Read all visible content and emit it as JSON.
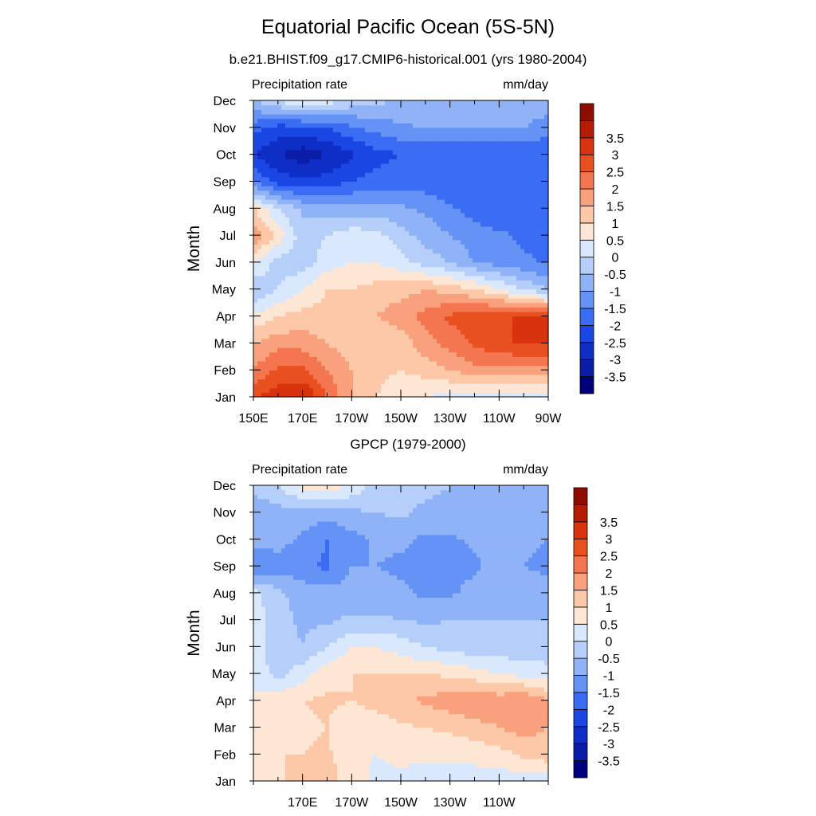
{
  "figure": {
    "title": "Equatorial Pacific Ocean (5S-5N)"
  },
  "colorbar": {
    "colors": [
      "#00007e",
      "#0b1ca6",
      "#0e2ec6",
      "#1a46e4",
      "#3b6cf4",
      "#6493f5",
      "#8fb3f6",
      "#b5cffa",
      "#d9e8fd",
      "#fde6d4",
      "#fcc8a8",
      "#f9a17c",
      "#f47650",
      "#e9501f",
      "#d6330e",
      "#b41d04",
      "#8d0d00"
    ],
    "labels": [
      "3.5",
      "3",
      "2.5",
      "2",
      "1.5",
      "1",
      "0.5",
      "0",
      "-0.5",
      "-1",
      "-1.5",
      "-2",
      "-2.5",
      "-3",
      "-3.5"
    ],
    "levels": [
      -3.5,
      -3,
      -2.5,
      -2,
      -1.5,
      -1,
      -0.5,
      0,
      0.5,
      1,
      1.5,
      2,
      2.5,
      3,
      3.5
    ]
  },
  "chart_data": [
    {
      "type": "heatmap",
      "title": "b.e21.BHIST.f09_g17.CMIP6-historical.001 (yrs 1980-2004)",
      "left_string": "Precipitation rate",
      "right_string": "mm/day",
      "ylabel": "Month",
      "xticklabels": [
        "150E",
        "170E",
        "170W",
        "150W",
        "130W",
        "110W",
        "90W"
      ],
      "yticklabels": [
        "Jan",
        "Feb",
        "Mar",
        "Apr",
        "May",
        "Jun",
        "Jul",
        "Aug",
        "Sep",
        "Oct",
        "Nov",
        "Dec"
      ],
      "x": [
        150,
        160,
        170,
        180,
        190,
        200,
        210,
        220,
        230,
        240,
        250,
        260,
        270
      ],
      "y": [
        "Jan",
        "Feb",
        "Mar",
        "Apr",
        "May",
        "Jun",
        "Jul",
        "Aug",
        "Sep",
        "Oct",
        "Nov",
        "Dec"
      ],
      "units": "mm/day",
      "zlim": [
        -4,
        4
      ],
      "z": [
        [
          3.0,
          3.3,
          3.6,
          2.5,
          1.5,
          1.0,
          0.5,
          0.5,
          0.3,
          0.2,
          0.2,
          0.2,
          0.2
        ],
        [
          2.0,
          2.6,
          2.6,
          2.0,
          1.5,
          1.2,
          1.0,
          1.2,
          1.5,
          1.8,
          1.8,
          1.8,
          1.8
        ],
        [
          1.5,
          1.8,
          1.8,
          1.5,
          1.2,
          1.0,
          1.2,
          1.8,
          2.2,
          2.6,
          2.9,
          3.1,
          3.1
        ],
        [
          0.6,
          1.0,
          1.2,
          1.2,
          1.2,
          1.5,
          1.8,
          2.2,
          2.6,
          2.8,
          3.0,
          3.0,
          3.0
        ],
        [
          -0.5,
          0.0,
          0.5,
          1.0,
          1.0,
          1.2,
          1.3,
          1.5,
          1.3,
          1.0,
          0.5,
          0.0,
          -0.5
        ],
        [
          0.5,
          -0.2,
          -0.3,
          0.3,
          0.5,
          0.5,
          0.2,
          -0.2,
          -0.5,
          -1.0,
          -1.2,
          -1.4,
          -1.6
        ],
        [
          2.0,
          0.8,
          -0.3,
          0.0,
          0.3,
          0.2,
          -0.3,
          -0.7,
          -1.0,
          -1.3,
          -1.4,
          -1.6,
          -1.7
        ],
        [
          1.0,
          0.0,
          -0.6,
          -0.7,
          -0.8,
          -0.8,
          -0.9,
          -1.1,
          -1.4,
          -1.7,
          -1.9,
          -2.0,
          -2.0
        ],
        [
          -1.5,
          -2.2,
          -2.4,
          -2.3,
          -2.0,
          -1.8,
          -1.7,
          -1.8,
          -2.0,
          -2.0,
          -2.0,
          -2.0,
          -2.0
        ],
        [
          -2.5,
          -3.0,
          -3.3,
          -3.0,
          -2.6,
          -2.2,
          -2.0,
          -2.0,
          -2.0,
          -2.0,
          -2.0,
          -2.0,
          -2.0
        ],
        [
          -1.8,
          -2.2,
          -2.2,
          -2.0,
          -1.6,
          -1.3,
          -1.1,
          -1.0,
          -1.0,
          -1.0,
          -1.0,
          -1.0,
          -1.2
        ],
        [
          -0.5,
          0.0,
          0.6,
          0.3,
          -0.2,
          -0.4,
          -0.5,
          -0.5,
          -0.5,
          -0.5,
          -0.6,
          -0.7,
          -0.8
        ]
      ]
    },
    {
      "type": "heatmap",
      "title": "GPCP (1979-2000)",
      "left_string": "Precipitation rate",
      "right_string": "mm/day",
      "ylabel": "Month",
      "xticklabels": [
        "170E",
        "170W",
        "150W",
        "130W",
        "110W"
      ],
      "yticklabels": [
        "Jan",
        "Feb",
        "Mar",
        "Apr",
        "May",
        "Jun",
        "Jul",
        "Aug",
        "Sep",
        "Oct",
        "Nov",
        "Dec"
      ],
      "x": [
        150,
        160,
        170,
        180,
        190,
        200,
        210,
        220,
        230,
        240,
        250,
        260,
        270
      ],
      "y": [
        "Jan",
        "Feb",
        "Mar",
        "Apr",
        "May",
        "Jun",
        "Jul",
        "Aug",
        "Sep",
        "Oct",
        "Nov",
        "Dec"
      ],
      "units": "mm/day",
      "zlim": [
        -4,
        4
      ],
      "z": [
        [
          0.6,
          0.9,
          1.2,
          1.3,
          0.7,
          0.4,
          0.4,
          0.3,
          0.2,
          0.2,
          0.2,
          0.2,
          0.2
        ],
        [
          0.8,
          1.0,
          1.0,
          1.1,
          0.6,
          0.5,
          0.6,
          0.6,
          0.6,
          0.7,
          0.8,
          1.1,
          1.3
        ],
        [
          0.8,
          1.0,
          0.9,
          1.0,
          0.6,
          0.7,
          0.9,
          1.0,
          1.1,
          1.3,
          1.5,
          1.7,
          1.5
        ],
        [
          0.6,
          0.8,
          1.0,
          1.1,
          1.0,
          1.2,
          1.4,
          1.6,
          1.8,
          2.0,
          1.8,
          2.0,
          1.5
        ],
        [
          0.3,
          -0.2,
          0.3,
          0.8,
          1.0,
          1.0,
          1.0,
          1.0,
          0.9,
          0.7,
          0.5,
          0.3,
          0.2
        ],
        [
          0.3,
          -0.3,
          -0.5,
          0.0,
          0.5,
          0.5,
          0.3,
          0.0,
          -0.2,
          -0.3,
          -0.3,
          -0.3,
          -0.3
        ],
        [
          0.3,
          -0.3,
          -0.6,
          -0.6,
          -0.4,
          -0.4,
          -0.5,
          -0.6,
          -0.5,
          -0.5,
          -0.5,
          -0.5,
          -0.5
        ],
        [
          0.2,
          -0.4,
          -0.7,
          -0.8,
          -0.8,
          -0.8,
          -0.9,
          -1.1,
          -1.1,
          -0.8,
          -0.6,
          -0.6,
          -0.6
        ],
        [
          -1.5,
          -1.2,
          -1.4,
          -1.6,
          -1.0,
          -1.0,
          -1.1,
          -1.2,
          -1.2,
          -1.1,
          -0.8,
          -1.0,
          -1.2
        ],
        [
          -0.8,
          -0.8,
          -1.1,
          -1.5,
          -1.2,
          -0.9,
          -0.9,
          -1.1,
          -1.1,
          -0.9,
          -0.7,
          -0.8,
          -1.0
        ],
        [
          -0.9,
          -0.7,
          -0.7,
          -0.8,
          -0.6,
          -0.5,
          -0.4,
          -0.6,
          -0.6,
          -0.6,
          -0.5,
          -0.6,
          -0.7
        ],
        [
          -0.3,
          0.0,
          0.7,
          0.9,
          0.4,
          -0.2,
          -0.3,
          -0.4,
          -0.5,
          -0.5,
          -0.5,
          -0.5,
          -0.5
        ]
      ]
    }
  ]
}
